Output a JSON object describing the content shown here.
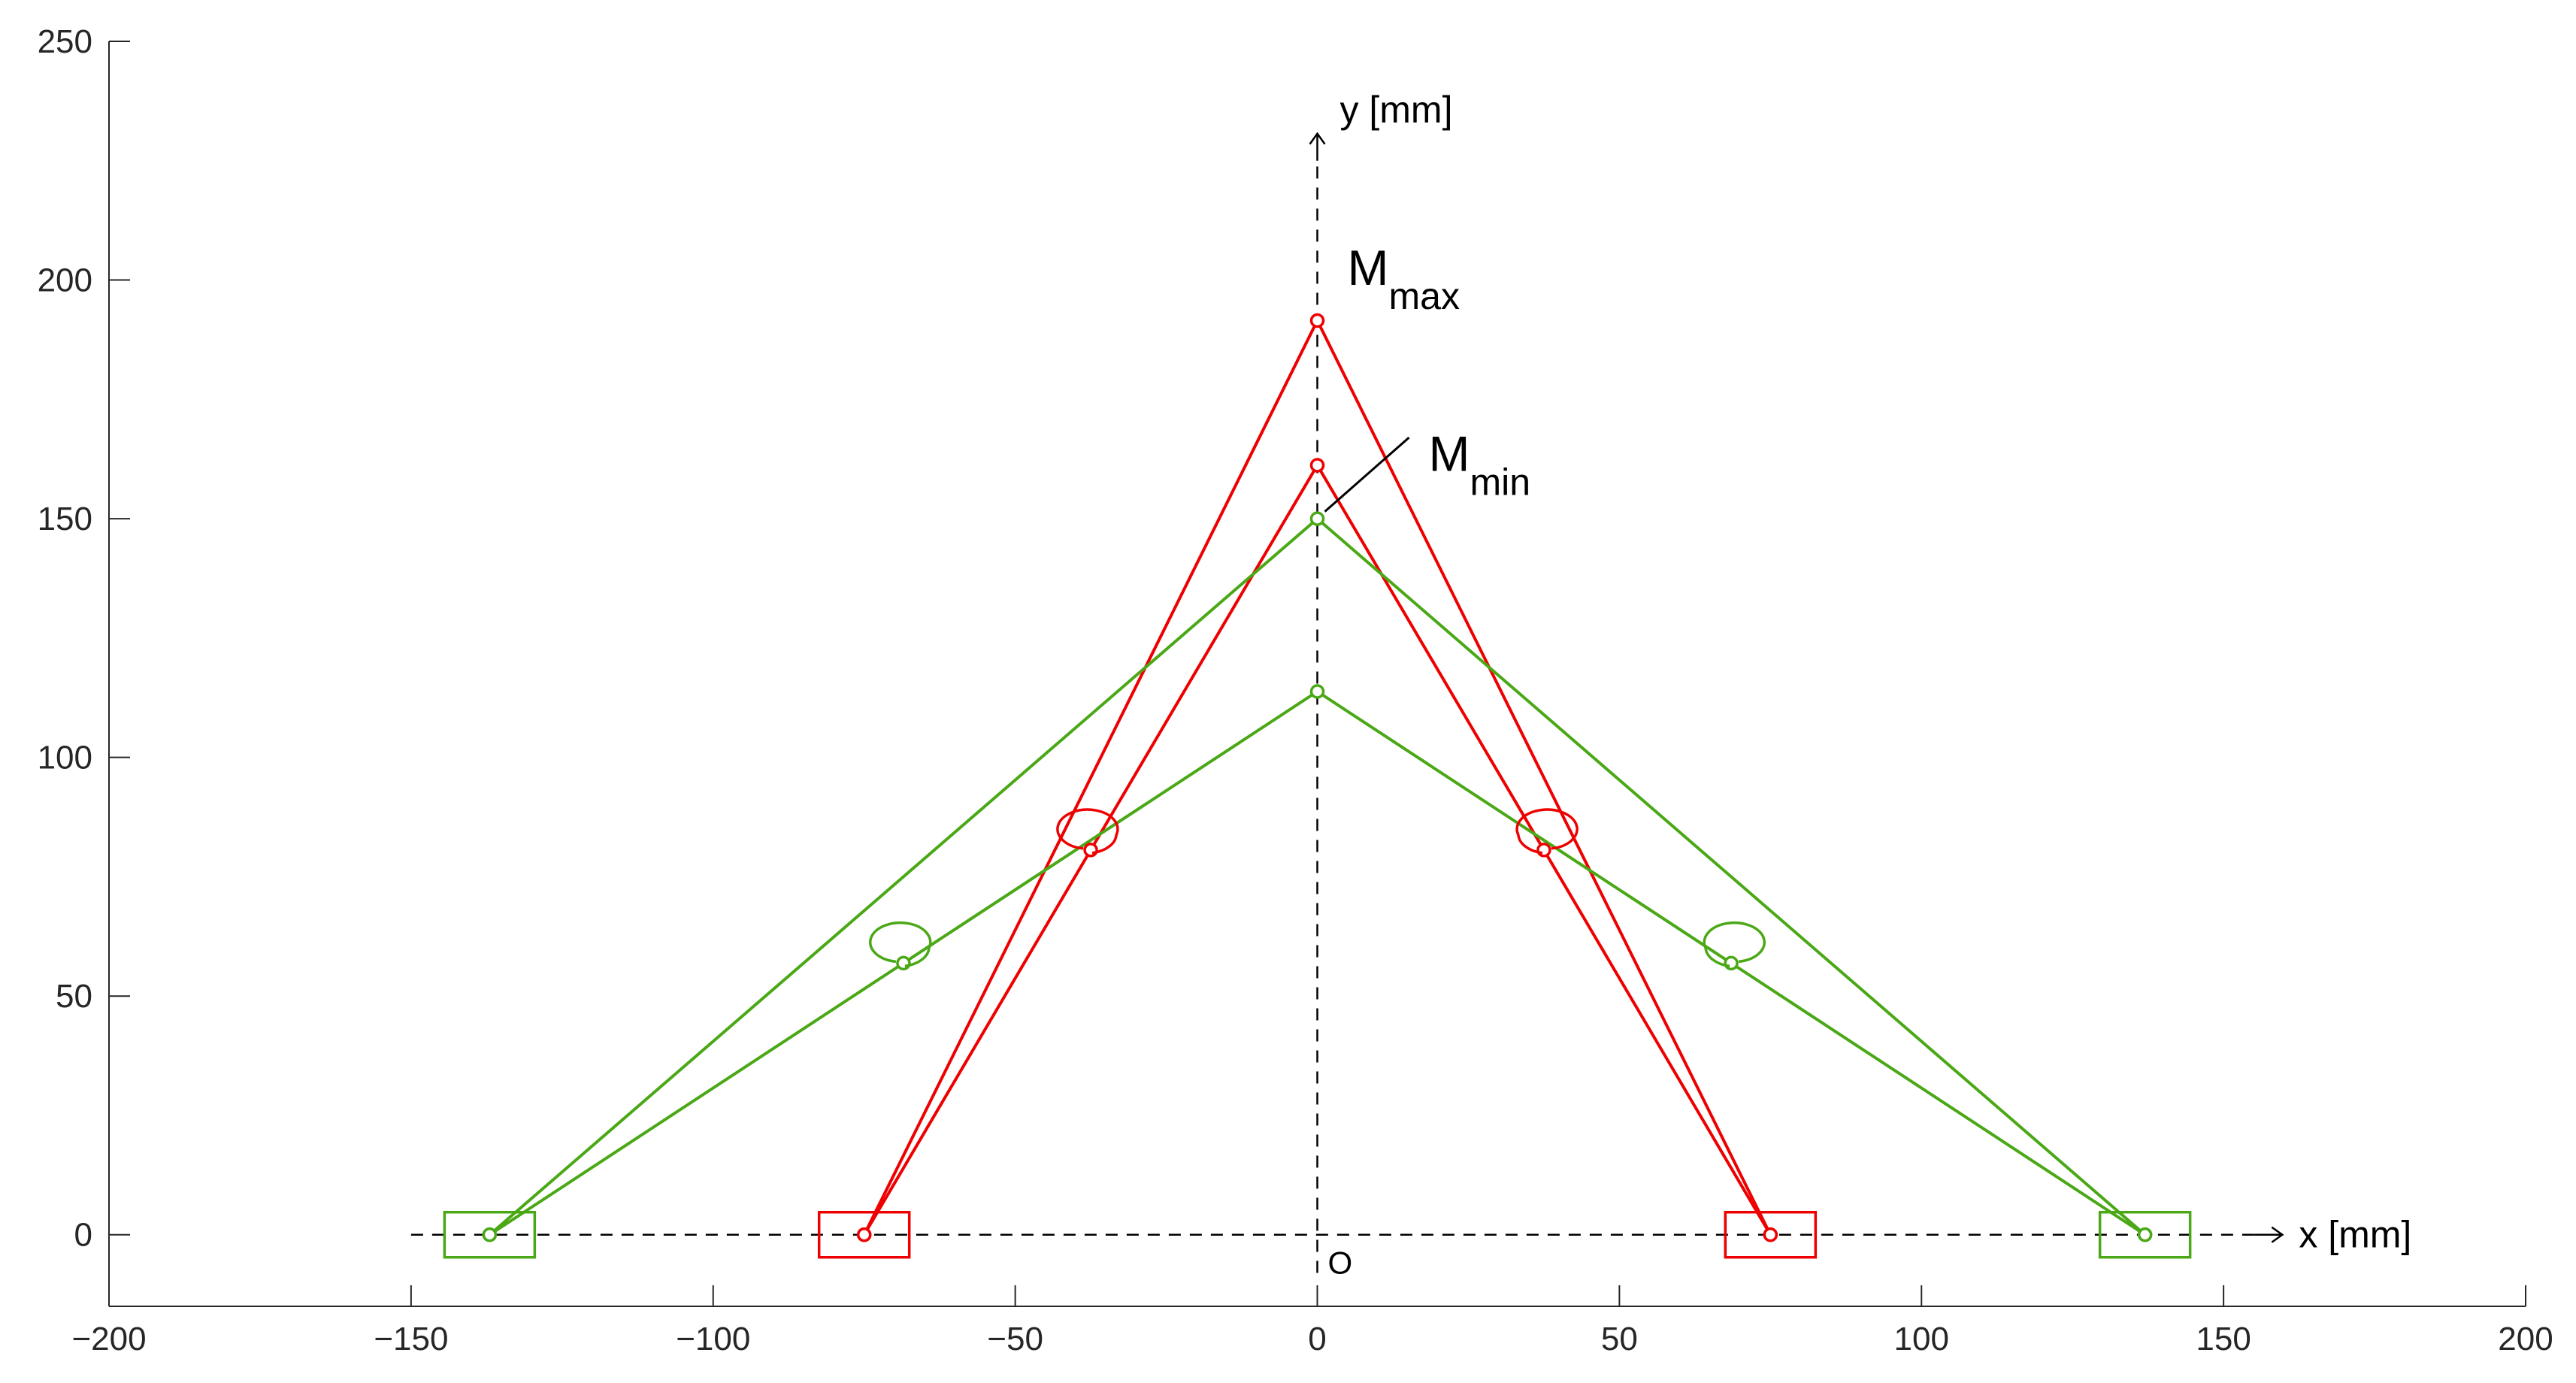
{
  "chart_data": {
    "type": "line",
    "title": "",
    "xlabel": "",
    "ylabel": "",
    "xlim": [
      -200,
      200
    ],
    "ylim": [
      -15,
      250
    ],
    "xticks": [
      -200,
      -150,
      -100,
      -50,
      0,
      50,
      100,
      150,
      200
    ],
    "yticks": [
      0,
      50,
      100,
      150,
      200,
      250
    ],
    "grid": false,
    "legend": "none",
    "colors": {
      "red": "#ee0000",
      "green": "#4aa816",
      "axis": "#262626",
      "frame": "#000000"
    },
    "series": [
      {
        "color": "red",
        "points": [
          [
            -75,
            0
          ],
          [
            -37.5,
            80.6
          ],
          [
            0,
            161.2
          ],
          [
            37.5,
            80.6
          ],
          [
            75,
            0
          ]
        ]
      },
      {
        "color": "red",
        "points": [
          [
            -75,
            0
          ],
          [
            0,
            191.5
          ],
          [
            75,
            0
          ]
        ]
      },
      {
        "color": "green",
        "points": [
          [
            -137,
            0
          ],
          [
            -68.5,
            56.9
          ],
          [
            0,
            113.8
          ],
          [
            68.5,
            56.9
          ],
          [
            137,
            0
          ]
        ]
      },
      {
        "color": "green",
        "points": [
          [
            -137,
            0
          ],
          [
            0,
            150
          ],
          [
            137,
            0
          ]
        ]
      }
    ],
    "sliders": [
      {
        "x": -75,
        "y": 0,
        "color": "red"
      },
      {
        "x": 75,
        "y": 0,
        "color": "red"
      },
      {
        "x": -137,
        "y": 0,
        "color": "green"
      },
      {
        "x": 137,
        "y": 0,
        "color": "green"
      }
    ],
    "joints": [
      {
        "x": -37.5,
        "y": 80.6,
        "color": "red",
        "side": "right"
      },
      {
        "x": 37.5,
        "y": 80.6,
        "color": "red",
        "side": "left"
      },
      {
        "x": -68.5,
        "y": 56.9,
        "color": "green",
        "side": "right"
      },
      {
        "x": 68.5,
        "y": 56.9,
        "color": "green",
        "side": "left"
      }
    ],
    "annotations": {
      "x_axis_label": "x [mm]",
      "y_axis_label": "y [mm]",
      "origin_label": "O",
      "m_max": {
        "main": "M",
        "sub": "max"
      },
      "m_min": {
        "main": "M",
        "sub": "min"
      }
    }
  }
}
